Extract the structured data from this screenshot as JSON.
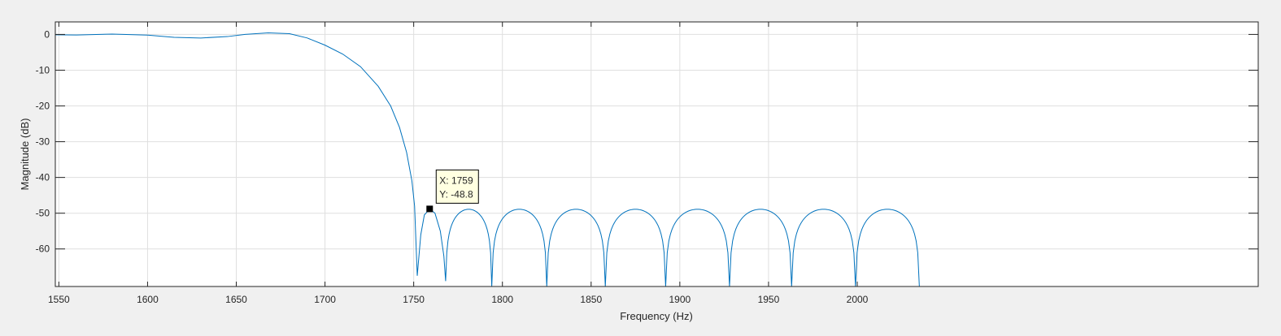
{
  "chart_data": {
    "type": "line",
    "title": "",
    "xlabel": "Frequency (Hz)",
    "ylabel": "Magnitude (dB)",
    "xlim": [
      1548,
      2226
    ],
    "ylim": [
      -70.5,
      3.5
    ],
    "xticks": [
      1550,
      1600,
      1650,
      1700,
      1750,
      1800,
      1850,
      1900,
      1950,
      2000
    ],
    "yticks": [
      0,
      -10,
      -20,
      -30,
      -40,
      -50,
      -60
    ],
    "grid": true,
    "colors": {
      "line": "#0072bd",
      "grid": "#dfdfdf",
      "axes_bg": "#ffffff",
      "figure_bg": "#f0f0f0"
    },
    "series": [
      {
        "points": [
          [
            1548,
            -0.1
          ],
          [
            1560,
            -0.15
          ],
          [
            1580,
            0.1
          ],
          [
            1600,
            -0.2
          ],
          [
            1615,
            -0.8
          ],
          [
            1630,
            -1.0
          ],
          [
            1645,
            -0.6
          ],
          [
            1655,
            0.0
          ],
          [
            1668,
            0.45
          ],
          [
            1680,
            0.2
          ],
          [
            1690,
            -1.0
          ],
          [
            1700,
            -3.0
          ],
          [
            1710,
            -5.5
          ],
          [
            1720,
            -9.0
          ],
          [
            1730,
            -14.5
          ],
          [
            1737,
            -20.0
          ],
          [
            1742,
            -26.0
          ],
          [
            1746,
            -33.0
          ],
          [
            1749,
            -41.0
          ],
          [
            1750.5,
            -48.0
          ],
          [
            1752,
            -67.5
          ],
          [
            1754,
            -56.0
          ],
          [
            1756,
            -50.5
          ],
          [
            1759,
            -48.8
          ],
          [
            1762,
            -50.0
          ],
          [
            1765,
            -55.0
          ],
          [
            1767,
            -62.0
          ],
          [
            1768,
            -69.0
          ],
          [
            1780,
            -48.9
          ],
          [
            1809,
            -48.9
          ],
          [
            1841,
            -48.9
          ],
          [
            1875,
            -48.9
          ],
          [
            1910,
            -48.9
          ],
          [
            1946,
            -48.9
          ],
          [
            1981,
            -48.9
          ],
          [
            2017,
            -48.9
          ]
        ],
        "nulls": [
          1752,
          1768,
          1794,
          1825,
          1858,
          1892,
          1928,
          1963,
          1999
        ],
        "lobe_peak": -48.9,
        "end_x": 2226
      }
    ],
    "datatip": {
      "x": 1759,
      "y": -48.8,
      "label_x": "X: 1759",
      "label_y": "Y: -48.8"
    }
  }
}
